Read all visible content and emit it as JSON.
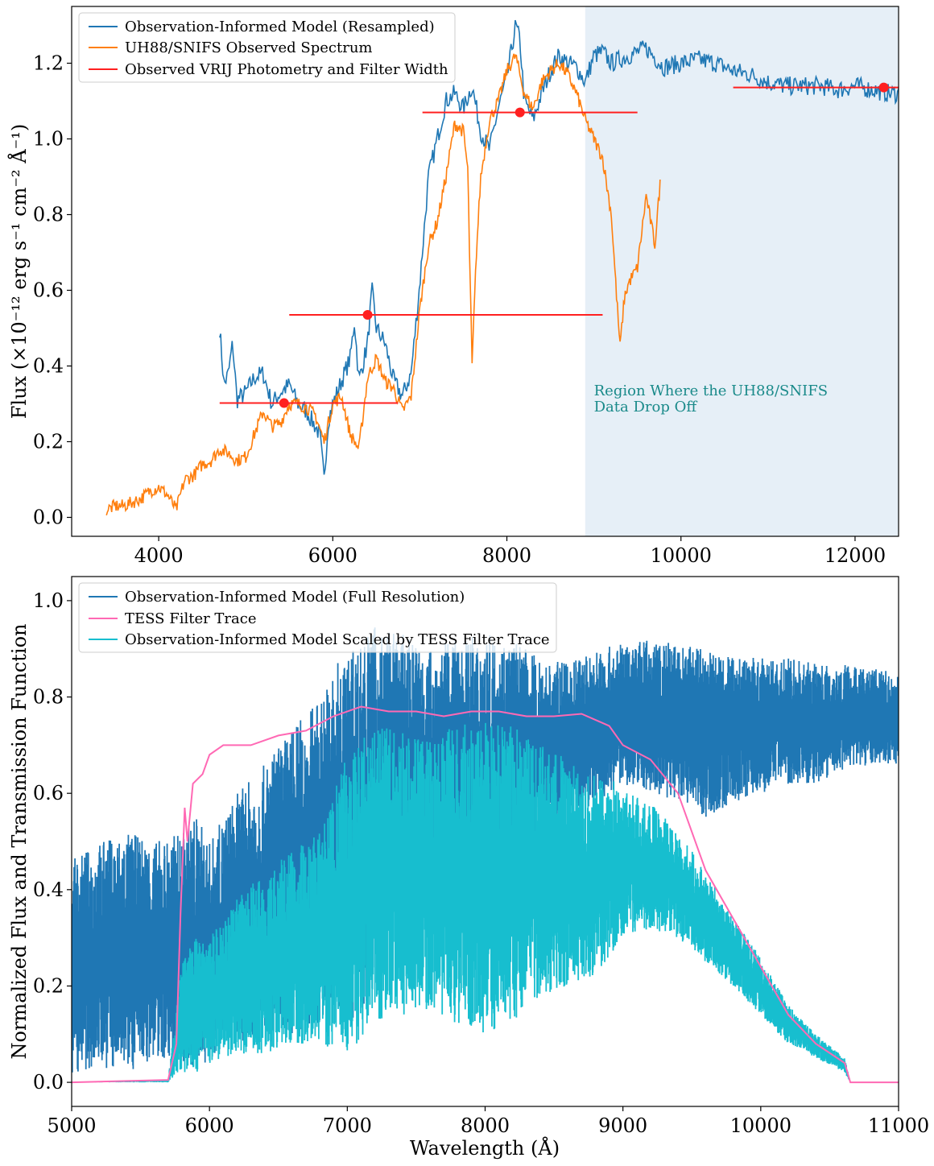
{
  "colors": {
    "model": "#1f77b4",
    "observed": "#ff7f0e",
    "photometry": "#ff2020",
    "tess": "#ff69b4",
    "scaled": "#17becf",
    "shade": "#e6eff7",
    "annotation": "#1a8a8a"
  },
  "chart_data": [
    {
      "type": "line",
      "title": "",
      "xlabel": "",
      "ylabel": "Flux (×10⁻¹² erg s⁻¹ cm⁻² Å⁻¹)",
      "xlim": [
        3000,
        12500
      ],
      "ylim": [
        -0.05,
        1.35
      ],
      "xticks": [
        4000,
        6000,
        8000,
        10000,
        12000
      ],
      "yticks": [
        0.0,
        0.2,
        0.4,
        0.6,
        0.8,
        1.0,
        1.2
      ],
      "yticklabels": [
        "0.0",
        "0.2",
        "0.4",
        "0.6",
        "0.8",
        "1.0",
        "1.2"
      ],
      "legend_position": "top-left",
      "shaded_region": {
        "x": [
          8900,
          12500
        ],
        "label": "Region Where the UH88/SNIFS Data Drop Off"
      },
      "annotation": {
        "lines": [
          "Region Where the UH88/SNIFS",
          "Data Drop Off"
        ],
        "x": 9000,
        "y": 0.335
      },
      "series": [
        {
          "name": "Observation-Informed Model (Resampled)",
          "x": [
            4700,
            4750,
            4800,
            4850,
            4900,
            5000,
            5100,
            5200,
            5300,
            5400,
            5500,
            5600,
            5700,
            5800,
            5850,
            5900,
            5950,
            6000,
            6100,
            6200,
            6250,
            6300,
            6400,
            6450,
            6500,
            6600,
            6700,
            6800,
            6900,
            7000,
            7100,
            7200,
            7300,
            7400,
            7500,
            7600,
            7700,
            7800,
            7900,
            8000,
            8100,
            8150,
            8200,
            8300,
            8400,
            8500,
            8600,
            8700,
            8800,
            8900,
            9000,
            9100,
            9200,
            9400,
            9600,
            9800,
            10000,
            10200,
            10400,
            10600,
            10800,
            11000,
            11200,
            11400,
            11600,
            11800,
            12000,
            12200,
            12400,
            12500
          ],
          "y": [
            0.5,
            0.35,
            0.38,
            0.46,
            0.31,
            0.33,
            0.37,
            0.38,
            0.3,
            0.33,
            0.35,
            0.3,
            0.28,
            0.24,
            0.22,
            0.1,
            0.26,
            0.3,
            0.36,
            0.42,
            0.52,
            0.36,
            0.46,
            0.6,
            0.5,
            0.46,
            0.36,
            0.32,
            0.38,
            0.62,
            0.9,
            1.0,
            1.1,
            1.12,
            1.08,
            1.14,
            1.02,
            0.97,
            1.08,
            1.16,
            1.3,
            1.26,
            1.1,
            1.05,
            1.12,
            1.18,
            1.22,
            1.2,
            1.19,
            1.15,
            1.22,
            1.23,
            1.2,
            1.22,
            1.24,
            1.19,
            1.2,
            1.21,
            1.2,
            1.18,
            1.17,
            1.15,
            1.14,
            1.14,
            1.14,
            1.13,
            1.14,
            1.13,
            1.12,
            1.12
          ]
        },
        {
          "name": "UH88/SNIFS Observed Spectrum",
          "x": [
            3400,
            3500,
            3600,
            3700,
            3800,
            3900,
            4000,
            4100,
            4200,
            4300,
            4400,
            4500,
            4600,
            4700,
            4800,
            4900,
            5000,
            5100,
            5200,
            5300,
            5400,
            5500,
            5600,
            5700,
            5800,
            5900,
            6000,
            6100,
            6200,
            6300,
            6400,
            6500,
            6600,
            6700,
            6800,
            6900,
            7000,
            7100,
            7200,
            7300,
            7400,
            7500,
            7550,
            7600,
            7650,
            7700,
            7800,
            7900,
            8000,
            8100,
            8200,
            8300,
            8400,
            8500,
            8600,
            8700,
            8800,
            8900,
            9000,
            9100,
            9200,
            9250,
            9300,
            9350,
            9400,
            9500,
            9600,
            9700,
            9760
          ],
          "y": [
            0.02,
            0.03,
            0.03,
            0.04,
            0.05,
            0.07,
            0.08,
            0.06,
            0.02,
            0.1,
            0.11,
            0.14,
            0.15,
            0.18,
            0.17,
            0.15,
            0.16,
            0.22,
            0.28,
            0.24,
            0.25,
            0.3,
            0.3,
            0.29,
            0.27,
            0.2,
            0.3,
            0.32,
            0.22,
            0.18,
            0.37,
            0.42,
            0.36,
            0.34,
            0.28,
            0.32,
            0.55,
            0.72,
            0.78,
            0.9,
            1.04,
            1.02,
            0.92,
            0.4,
            0.7,
            0.9,
            1.05,
            1.1,
            1.18,
            1.22,
            1.12,
            1.08,
            1.15,
            1.18,
            1.2,
            1.17,
            1.12,
            1.05,
            1.0,
            0.95,
            0.8,
            0.62,
            0.45,
            0.58,
            0.62,
            0.66,
            0.85,
            0.72,
            0.88
          ]
        }
      ],
      "photometry": {
        "name": "Observed VRIJ Photometry and Filter Width",
        "points": [
          {
            "x": 5440,
            "y": 0.302,
            "xmin": 4700,
            "xmax": 6750
          },
          {
            "x": 6400,
            "y": 0.535,
            "xmin": 5500,
            "xmax": 9100
          },
          {
            "x": 8150,
            "y": 1.07,
            "xmin": 7030,
            "xmax": 9500
          },
          {
            "x": 12330,
            "y": 1.136,
            "xmin": 10600,
            "xmax": 12500
          }
        ]
      }
    },
    {
      "type": "line",
      "title": "",
      "xlabel": "Wavelength (Å)",
      "ylabel": "Normalized Flux and Transmission Function",
      "xlim": [
        5000,
        11000
      ],
      "ylim": [
        -0.05,
        1.05
      ],
      "xticks": [
        5000,
        6000,
        7000,
        8000,
        9000,
        10000,
        11000
      ],
      "yticks": [
        0.0,
        0.2,
        0.4,
        0.6,
        0.8,
        1.0
      ],
      "yticklabels": [
        "0.0",
        "0.2",
        "0.4",
        "0.6",
        "0.8",
        "1.0"
      ],
      "legend_position": "top-left",
      "series": [
        {
          "name": "Observation-Informed Model (Full Resolution)",
          "x": [
            5000,
            5200,
            5400,
            5600,
            5800,
            5900,
            6000,
            6200,
            6400,
            6500,
            6600,
            6800,
            6900,
            7000,
            7200,
            7400,
            7600,
            7800,
            8000,
            8200,
            8400,
            8600,
            8800,
            9000,
            9200,
            9400,
            9600,
            9800,
            10000,
            10200,
            10400,
            10600,
            10800,
            11000
          ],
          "y_upper": [
            0.46,
            0.5,
            0.52,
            0.5,
            0.52,
            0.56,
            0.5,
            0.6,
            0.66,
            0.7,
            0.74,
            0.8,
            0.86,
            0.9,
            0.95,
            0.93,
            0.9,
            0.92,
            0.93,
            0.92,
            0.88,
            0.87,
            0.9,
            0.91,
            0.92,
            0.91,
            0.9,
            0.89,
            0.88,
            0.88,
            0.87,
            0.87,
            0.86,
            0.85
          ],
          "y_lower": [
            0.02,
            0.03,
            0.02,
            0.05,
            0.04,
            0.02,
            0.05,
            0.08,
            0.08,
            0.12,
            0.1,
            0.12,
            0.18,
            0.1,
            0.2,
            0.4,
            0.44,
            0.42,
            0.4,
            0.45,
            0.5,
            0.55,
            0.58,
            0.62,
            0.6,
            0.58,
            0.55,
            0.58,
            0.6,
            0.62,
            0.62,
            0.65,
            0.66,
            0.66
          ]
        },
        {
          "name": "TESS Filter Trace",
          "x": [
            5000,
            5700,
            5760,
            5790,
            5820,
            5840,
            5880,
            5950,
            6000,
            6100,
            6300,
            6500,
            6700,
            6900,
            7100,
            7300,
            7500,
            7700,
            7900,
            8100,
            8300,
            8500,
            8700,
            8900,
            9000,
            9200,
            9400,
            9600,
            9800,
            10000,
            10200,
            10400,
            10610,
            10650,
            11000
          ],
          "y": [
            0.0,
            0.005,
            0.08,
            0.35,
            0.57,
            0.5,
            0.62,
            0.64,
            0.68,
            0.7,
            0.7,
            0.72,
            0.73,
            0.76,
            0.78,
            0.77,
            0.77,
            0.76,
            0.77,
            0.77,
            0.76,
            0.76,
            0.765,
            0.74,
            0.7,
            0.67,
            0.6,
            0.44,
            0.34,
            0.24,
            0.14,
            0.08,
            0.04,
            0.0,
            0.0
          ]
        },
        {
          "name": "Observation-Informed Model Scaled by TESS Filter Trace",
          "x": [
            5000,
            5700,
            5800,
            5900,
            6000,
            6200,
            6400,
            6600,
            6800,
            7000,
            7200,
            7400,
            7600,
            7800,
            8000,
            8200,
            8400,
            8600,
            8800,
            9000,
            9200,
            9400,
            9600,
            9800,
            10000,
            10200,
            10400,
            10610,
            10650,
            11000
          ],
          "y_upper": [
            0.0,
            0.005,
            0.25,
            0.3,
            0.3,
            0.38,
            0.44,
            0.48,
            0.52,
            0.68,
            0.74,
            0.73,
            0.72,
            0.74,
            0.76,
            0.74,
            0.7,
            0.68,
            0.64,
            0.62,
            0.58,
            0.52,
            0.44,
            0.34,
            0.26,
            0.16,
            0.1,
            0.05,
            0.0,
            0.0
          ],
          "y_lower": [
            0.0,
            0.0,
            0.02,
            0.02,
            0.04,
            0.06,
            0.06,
            0.08,
            0.08,
            0.06,
            0.12,
            0.14,
            0.15,
            0.12,
            0.1,
            0.12,
            0.18,
            0.2,
            0.22,
            0.3,
            0.32,
            0.3,
            0.25,
            0.2,
            0.14,
            0.08,
            0.05,
            0.02,
            0.0,
            0.0
          ]
        }
      ]
    }
  ]
}
